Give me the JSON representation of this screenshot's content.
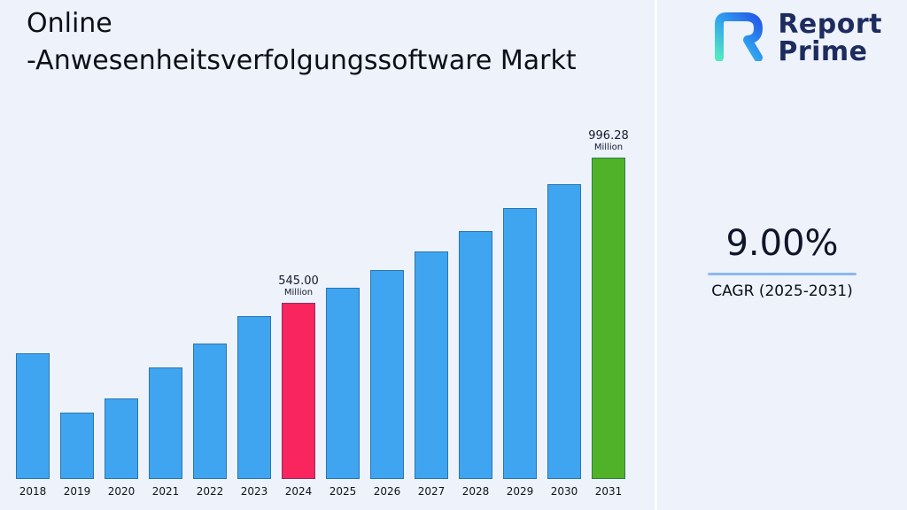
{
  "header": {
    "title_line1": "Online",
    "title_line2": "-Anwesenheitsverfolgungssoftware Markt"
  },
  "logo": {
    "name_line1": "Report",
    "name_line2": "Prime"
  },
  "stats": {
    "cagr_value": "9.00%",
    "cagr_label": "CAGR (2025-2031)"
  },
  "chart_data": {
    "type": "bar",
    "title": "Online -Anwesenheitsverfolgungssoftware Markt",
    "unit": "Million",
    "categories": [
      "2018",
      "2019",
      "2020",
      "2021",
      "2022",
      "2023",
      "2024",
      "2025",
      "2026",
      "2027",
      "2028",
      "2029",
      "2030",
      "2031"
    ],
    "values": [
      390,
      205,
      250,
      345,
      420,
      505,
      545.0,
      594.05,
      647.51,
      705.79,
      769.31,
      838.55,
      913.98,
      996.28
    ],
    "ylim": [
      0,
      1050
    ],
    "grid": false,
    "legend": false,
    "xlabel": "",
    "ylabel": "",
    "bar_color_default": "#3FA5F0",
    "bar_color_highlights": {
      "2024": "#F8255F",
      "2031": "#4FB229"
    },
    "annotations": [
      {
        "category": "2024",
        "value_label": "545.00",
        "unit_label": "Million"
      },
      {
        "category": "2031",
        "value_label": "996.28",
        "unit_label": "Million"
      }
    ]
  }
}
